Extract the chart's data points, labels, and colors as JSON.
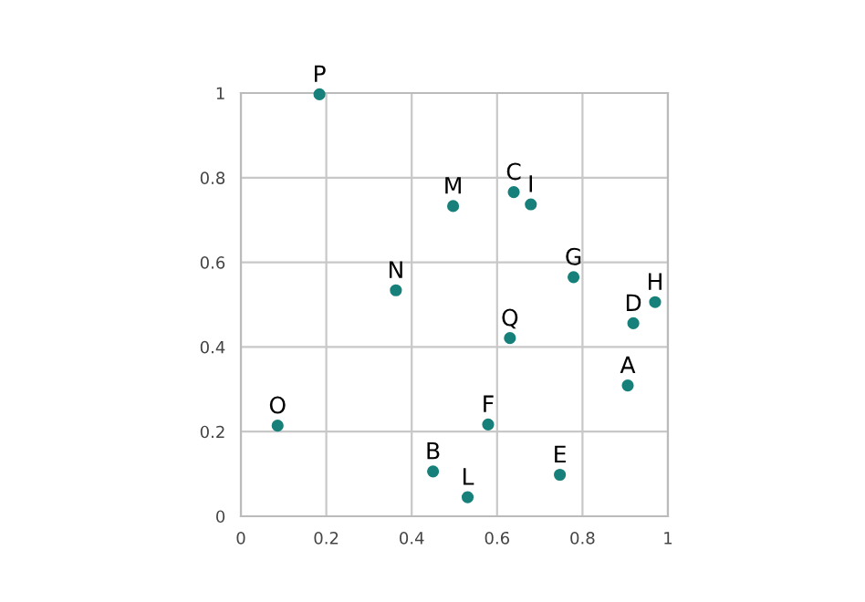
{
  "chart_data": {
    "type": "scatter",
    "x": [
      0.906,
      0.45,
      0.639,
      0.919,
      0.747,
      0.579,
      0.779,
      0.97,
      0.679,
      0.531,
      0.497,
      0.363,
      0.086,
      0.184,
      0.63
    ],
    "values": [
      0.309,
      0.106,
      0.766,
      0.456,
      0.098,
      0.217,
      0.565,
      0.506,
      0.737,
      0.045,
      0.733,
      0.534,
      0.214,
      0.997,
      0.421
    ],
    "color": "#17807a",
    "marker": "circle",
    "grid": true,
    "xlim": [
      0,
      1
    ],
    "ylim": [
      0,
      1
    ],
    "xticks": [
      0,
      0.2,
      0.4,
      0.6,
      0.8,
      1
    ],
    "yticks": [
      0,
      0.2,
      0.4,
      0.6,
      0.8,
      1
    ],
    "annotations": [
      {
        "text": "A",
        "x": 0.906,
        "y": 0.309
      },
      {
        "text": "B",
        "x": 0.45,
        "y": 0.106
      },
      {
        "text": "C",
        "x": 0.639,
        "y": 0.766
      },
      {
        "text": "D",
        "x": 0.919,
        "y": 0.456
      },
      {
        "text": "E",
        "x": 0.747,
        "y": 0.098
      },
      {
        "text": "F",
        "x": 0.579,
        "y": 0.217
      },
      {
        "text": "G",
        "x": 0.779,
        "y": 0.565
      },
      {
        "text": "H",
        "x": 0.97,
        "y": 0.506
      },
      {
        "text": "I",
        "x": 0.679,
        "y": 0.737
      },
      {
        "text": "L",
        "x": 0.531,
        "y": 0.045
      },
      {
        "text": "M",
        "x": 0.497,
        "y": 0.733
      },
      {
        "text": "N",
        "x": 0.363,
        "y": 0.534
      },
      {
        "text": "O",
        "x": 0.086,
        "y": 0.214
      },
      {
        "text": "P",
        "x": 0.184,
        "y": 0.997
      },
      {
        "text": "Q",
        "x": 0.63,
        "y": 0.421
      }
    ]
  }
}
